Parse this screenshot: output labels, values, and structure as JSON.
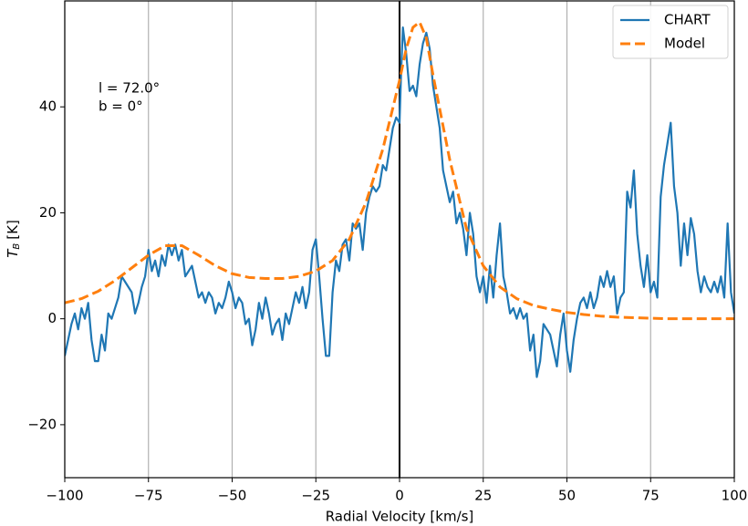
{
  "chart_data": {
    "type": "line",
    "xlabel": "Radial Velocity [km/s]",
    "ylabel": "T",
    "ylabel_subscript": "B",
    "ylabel_unit": "[K]",
    "annotations": [
      "l = 72.0°",
      "b = 0°"
    ],
    "xlim": [
      -100,
      100
    ],
    "ylim": [
      -30,
      60
    ],
    "xticks": [
      {
        "value": -100,
        "label": "−100"
      },
      {
        "value": -75,
        "label": "−75"
      },
      {
        "value": -50,
        "label": "−50"
      },
      {
        "value": -25,
        "label": "−25"
      },
      0,
      25,
      50,
      75,
      100
    ],
    "yticks": [
      {
        "value": -20,
        "label": "−20"
      },
      0,
      20,
      40
    ],
    "grid": "x",
    "vline": 0,
    "legend": "upper right",
    "series": [
      {
        "name": "CHART",
        "color": "#1f77b4",
        "style": "solid",
        "x": [
          -100,
          -98,
          -97,
          -96,
          -95,
          -94,
          -93,
          -92,
          -91,
          -90,
          -89,
          -88,
          -87,
          -86,
          -85,
          -84,
          -83,
          -82,
          -80,
          -79,
          -78,
          -77,
          -76,
          -75,
          -74,
          -73,
          -72,
          -71,
          -70,
          -69,
          -68,
          -67,
          -66,
          -65,
          -64,
          -63,
          -62,
          -61,
          -60,
          -59,
          -58,
          -57,
          -56,
          -55,
          -54,
          -53,
          -52,
          -51,
          -50,
          -49,
          -48,
          -47,
          -46,
          -45,
          -44,
          -43,
          -42,
          -41,
          -40,
          -39,
          -38,
          -37,
          -36,
          -35,
          -34,
          -33,
          -32,
          -31,
          -30,
          -29,
          -28,
          -27,
          -26,
          -25,
          -24,
          -23,
          -22,
          -21,
          -20,
          -19,
          -18,
          -17,
          -16,
          -15,
          -14,
          -13,
          -12,
          -11,
          -10,
          -9,
          -8,
          -7,
          -6,
          -5,
          -4,
          -3,
          -2,
          -1,
          0,
          0.5,
          1,
          2,
          3,
          4,
          5,
          6,
          7,
          8,
          9,
          10,
          11,
          12,
          13,
          14,
          15,
          16,
          17,
          18,
          19,
          20,
          21,
          22,
          23,
          24,
          25,
          26,
          27,
          28,
          29,
          30,
          31,
          32,
          33,
          34,
          35,
          36,
          37,
          38,
          39,
          40,
          41,
          42,
          43,
          44,
          45,
          46,
          47,
          48,
          49,
          50,
          51,
          52,
          53,
          54,
          55,
          56,
          57,
          58,
          59,
          60,
          61,
          62,
          63,
          64,
          65,
          66,
          67,
          68,
          69,
          70,
          71,
          72,
          73,
          74,
          75,
          76,
          77,
          78,
          79,
          80,
          81,
          82,
          83,
          84,
          85,
          86,
          87,
          88,
          89,
          90,
          91,
          92,
          93,
          94,
          95,
          96,
          97,
          98,
          99,
          100
        ],
        "values": [
          -7,
          -1,
          1,
          -2,
          2,
          0,
          3,
          -4,
          -8,
          -8,
          -3,
          -6,
          1,
          0,
          2,
          4,
          8,
          7,
          5,
          1,
          3,
          6,
          8,
          13,
          9,
          11,
          8,
          12,
          10,
          14,
          12,
          14,
          11,
          13,
          8,
          9,
          10,
          7,
          4,
          5,
          3,
          5,
          4,
          1,
          3,
          2,
          4,
          7,
          5,
          2,
          4,
          3,
          -1,
          0,
          -5,
          -2,
          3,
          0,
          4,
          1,
          -3,
          -1,
          0,
          -4,
          1,
          -1,
          2,
          5,
          3,
          6,
          2,
          5,
          13,
          15,
          8,
          0,
          -7,
          -7,
          5,
          11,
          9,
          14,
          15,
          11,
          18,
          17,
          18,
          13,
          20,
          23,
          25,
          24,
          25,
          29,
          28,
          32,
          36,
          38,
          37,
          47,
          55,
          50,
          43,
          44,
          42,
          48,
          52,
          54,
          51,
          44,
          40,
          36,
          28,
          25,
          22,
          24,
          18,
          20,
          17,
          12,
          20,
          16,
          8,
          5,
          8,
          3,
          10,
          4,
          12,
          18,
          8,
          5,
          1,
          2,
          0,
          2,
          0,
          1,
          -6,
          -3,
          -11,
          -8,
          -1,
          -2,
          -3,
          -6,
          -9,
          -3,
          1,
          -6,
          -10,
          -4,
          0,
          3,
          4,
          2,
          5,
          2,
          4,
          8,
          6,
          9,
          6,
          8,
          1,
          4,
          5,
          24,
          21,
          28,
          16,
          10,
          6,
          12,
          5,
          7,
          4,
          23,
          29,
          33,
          37,
          25,
          20,
          10,
          18,
          12,
          19,
          16,
          9,
          5,
          8,
          6,
          5,
          7,
          5,
          8,
          4,
          18,
          5,
          1
        ]
      },
      {
        "name": "Model",
        "color": "#ff7f0e",
        "style": "dashed",
        "x": [
          -100,
          -95,
          -90,
          -85,
          -80,
          -75,
          -70,
          -65,
          -60,
          -55,
          -50,
          -45,
          -40,
          -35,
          -30,
          -25,
          -20,
          -15,
          -10,
          -5,
          0,
          2,
          4,
          6,
          8,
          10,
          15,
          20,
          25,
          30,
          35,
          40,
          45,
          50,
          55,
          60,
          65,
          70,
          75,
          80,
          90,
          100
        ],
        "values": [
          3,
          3.8,
          5.2,
          7.2,
          9.6,
          12,
          13.8,
          13.8,
          12,
          10,
          8.5,
          7.8,
          7.6,
          7.6,
          8,
          9,
          11,
          15,
          22,
          32,
          45,
          51,
          55,
          56,
          53,
          46,
          30,
          17,
          10,
          6,
          3.8,
          2.5,
          1.8,
          1.2,
          0.8,
          0.5,
          0.3,
          0.2,
          0.1,
          0,
          0,
          0
        ]
      }
    ]
  }
}
